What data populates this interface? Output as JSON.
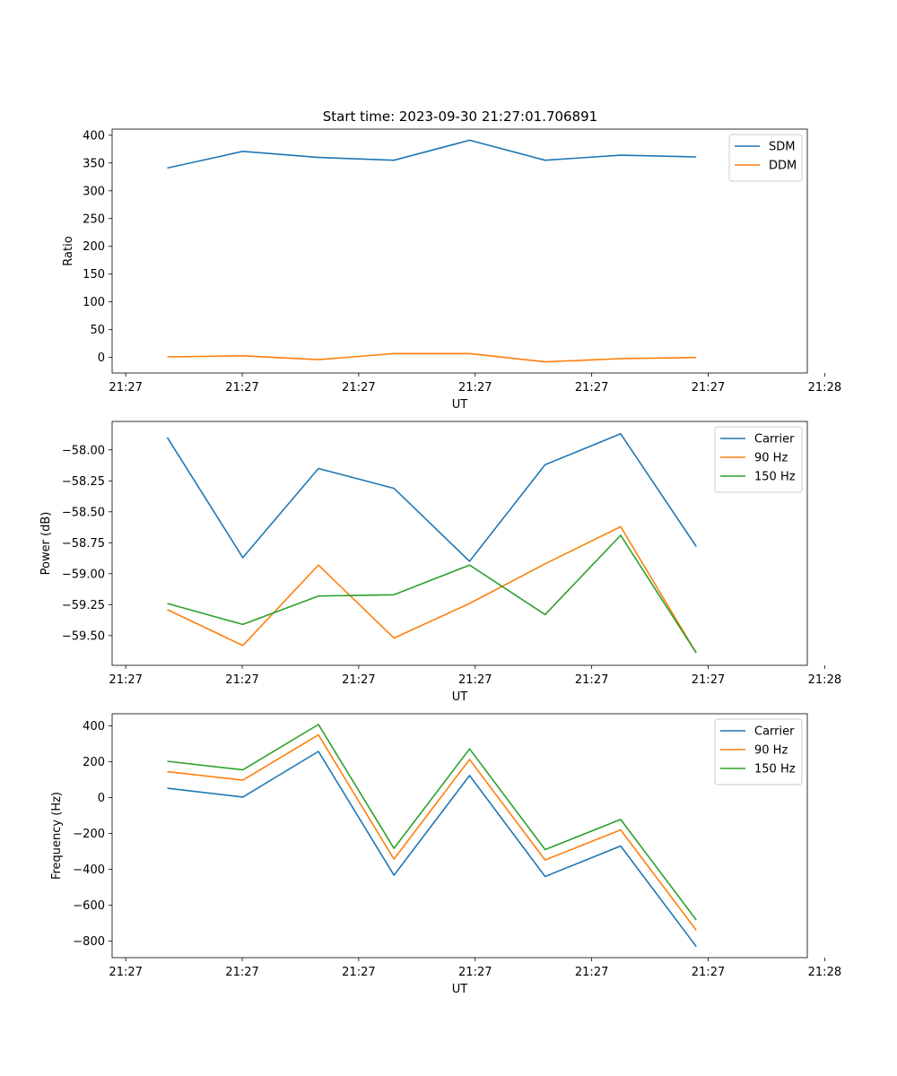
{
  "chart_data": [
    {
      "type": "line",
      "title": "Start time: 2023-09-30 21:27:01.706891",
      "xlabel": "UT",
      "ylabel": "Ratio",
      "x_tick_labels": [
        "21:27",
        "21:27",
        "21:27",
        "21:27",
        "21:27",
        "21:27",
        "21:28"
      ],
      "x": [
        1,
        2,
        3,
        4,
        5,
        6,
        7,
        8
      ],
      "xlim": [
        0.27,
        9.47
      ],
      "ylim": [
        -28,
        411
      ],
      "y_ticks": [
        0,
        50,
        100,
        150,
        200,
        250,
        300,
        350,
        400
      ],
      "legend_position": "upper-right",
      "series": [
        {
          "name": "SDM",
          "color": "#1f77b4",
          "values": [
            341,
            371,
            360,
            355,
            391,
            355,
            364,
            361
          ]
        },
        {
          "name": "DDM",
          "color": "#ff7f0e",
          "values": [
            1,
            3,
            -4,
            7,
            7,
            -8,
            -2,
            0
          ]
        }
      ]
    },
    {
      "type": "line",
      "title": "",
      "xlabel": "UT",
      "ylabel": "Power (dB)",
      "x_tick_labels": [
        "21:27",
        "21:27",
        "21:27",
        "21:27",
        "21:27",
        "21:27",
        "21:28"
      ],
      "x": [
        1,
        2,
        3,
        4,
        5,
        6,
        7,
        8
      ],
      "xlim": [
        0.27,
        9.47
      ],
      "ylim": [
        -59.74,
        -57.77
      ],
      "y_ticks": [
        -59.5,
        -59.25,
        -59.0,
        -58.75,
        -58.5,
        -58.25,
        -58.0
      ],
      "y_tick_labels": [
        "−59.50",
        "−59.25",
        "−59.00",
        "−58.75",
        "−58.50",
        "−58.25",
        "−58.00"
      ],
      "legend_position": "upper-right",
      "series": [
        {
          "name": "Carrier",
          "color": "#1f77b4",
          "values": [
            -57.9,
            -58.87,
            -58.15,
            -58.31,
            -58.9,
            -58.12,
            -57.87,
            -58.78
          ]
        },
        {
          "name": "90 Hz",
          "color": "#ff7f0e",
          "values": [
            -59.29,
            -59.58,
            -58.93,
            -59.52,
            -59.24,
            -58.92,
            -58.62,
            -59.64
          ]
        },
        {
          "name": "150 Hz",
          "color": "#2ca02c",
          "values": [
            -59.24,
            -59.41,
            -59.18,
            -59.17,
            -58.93,
            -59.33,
            -58.69,
            -59.64
          ]
        }
      ]
    },
    {
      "type": "line",
      "title": "",
      "xlabel": "UT",
      "ylabel": "Frequency (Hz)",
      "x_tick_labels": [
        "21:27",
        "21:27",
        "21:27",
        "21:27",
        "21:27",
        "21:27",
        "21:28"
      ],
      "x": [
        1,
        2,
        3,
        4,
        5,
        6,
        7,
        8
      ],
      "xlim": [
        0.27,
        9.47
      ],
      "ylim": [
        -893,
        468
      ],
      "y_ticks": [
        -800,
        -600,
        -400,
        -200,
        0,
        200,
        400
      ],
      "y_tick_labels": [
        "−800",
        "−600",
        "−400",
        "−200",
        "0",
        "200",
        "400"
      ],
      "legend_position": "upper-right",
      "series": [
        {
          "name": "Carrier",
          "color": "#1f77b4",
          "values": [
            52,
            3,
            258,
            -433,
            123,
            -440,
            -270,
            -831
          ]
        },
        {
          "name": "90 Hz",
          "color": "#ff7f0e",
          "values": [
            145,
            97,
            350,
            -343,
            213,
            -348,
            -180,
            -740
          ]
        },
        {
          "name": "150 Hz",
          "color": "#2ca02c",
          "values": [
            203,
            155,
            408,
            -283,
            272,
            -290,
            -122,
            -683
          ]
        }
      ]
    }
  ]
}
